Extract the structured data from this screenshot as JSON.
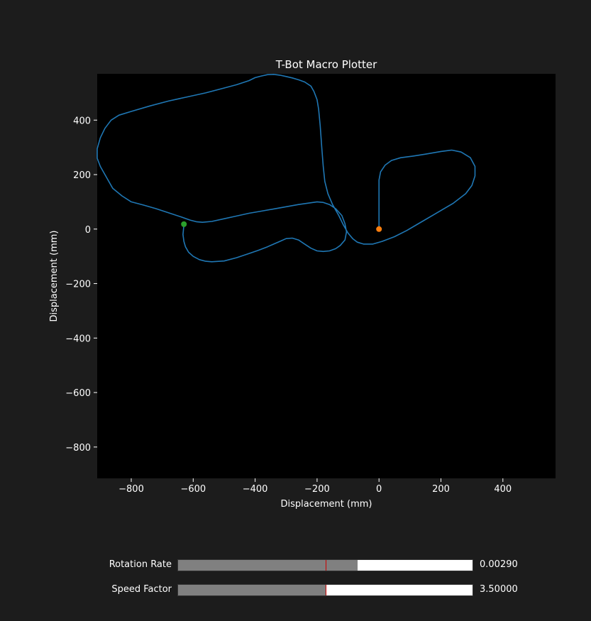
{
  "chart_data": {
    "type": "line",
    "title": "T-Bot Macro Plotter",
    "xlabel": "Displacement (mm)",
    "ylabel": "Displacement (mm)",
    "xlim": [
      -910,
      570
    ],
    "ylim": [
      -915,
      570
    ],
    "xticks": [
      -800,
      -600,
      -400,
      -200,
      0,
      200,
      400
    ],
    "yticks": [
      -800,
      -600,
      -400,
      -200,
      0,
      200,
      400
    ],
    "background": "#000000",
    "grid": false,
    "series": [
      {
        "color": "#1f77b4",
        "x": [
          0,
          0,
          5,
          20,
          40,
          70,
          110,
          150,
          200,
          235,
          265,
          295,
          310,
          310,
          300,
          280,
          240,
          180,
          120,
          90,
          50,
          10,
          -20,
          -50,
          -70,
          -85,
          -100,
          -115,
          -130,
          -150,
          -165,
          -175,
          -180,
          -185,
          -190,
          -195,
          -200,
          -210,
          -220,
          -240,
          -260,
          -280,
          -300,
          -320,
          -340,
          -360,
          -380,
          -400,
          -420,
          -460,
          -500,
          -560,
          -620,
          -680,
          -740,
          -800,
          -840,
          -865,
          -885,
          -900,
          -910,
          -910,
          -900,
          -880,
          -860,
          -830,
          -800,
          -760,
          -720,
          -680,
          -640,
          -610,
          -590,
          -570,
          -540,
          -500,
          -460,
          -420,
          -380,
          -340,
          -300,
          -260,
          -230,
          -200,
          -180,
          -160,
          -140,
          -120,
          -110,
          -105,
          -110,
          -125,
          -140,
          -160,
          -180,
          -200,
          -220,
          -240,
          -260,
          -280,
          -300,
          -320,
          -340,
          -360,
          -390,
          -420,
          -460,
          -500,
          -540,
          -560,
          -580,
          -600,
          -615,
          -625,
          -630,
          -633,
          -630
        ],
        "y": [
          0,
          180,
          210,
          235,
          252,
          262,
          268,
          275,
          285,
          290,
          283,
          262,
          230,
          195,
          160,
          130,
          95,
          55,
          15,
          -5,
          -28,
          -45,
          -55,
          -55,
          -48,
          -35,
          -15,
          15,
          50,
          90,
          130,
          175,
          230,
          300,
          380,
          440,
          475,
          505,
          525,
          540,
          548,
          555,
          560,
          565,
          568,
          567,
          562,
          556,
          545,
          530,
          518,
          500,
          485,
          470,
          452,
          432,
          418,
          400,
          370,
          335,
          295,
          260,
          230,
          190,
          150,
          122,
          100,
          88,
          75,
          60,
          45,
          33,
          27,
          25,
          28,
          38,
          48,
          58,
          66,
          74,
          82,
          90,
          95,
          100,
          98,
          90,
          75,
          50,
          20,
          -10,
          -40,
          -60,
          -72,
          -80,
          -82,
          -80,
          -70,
          -55,
          -40,
          -33,
          -35,
          -45,
          -55,
          -65,
          -78,
          -90,
          -105,
          -117,
          -120,
          -118,
          -112,
          -100,
          -85,
          -65,
          -45,
          -20,
          15
        ]
      }
    ],
    "markers": [
      {
        "x": 0,
        "y": 0,
        "color": "#ff7f0e"
      },
      {
        "x": -630,
        "y": 18,
        "color": "#2ca02c"
      }
    ]
  },
  "sliders": [
    {
      "label": "Rotation Rate",
      "value_text": "0.00290",
      "fill_fraction": 0.61,
      "init_fraction": 0.5
    },
    {
      "label": "Speed Factor",
      "value_text": "3.50000",
      "fill_fraction": 0.5,
      "init_fraction": 0.5
    }
  ]
}
